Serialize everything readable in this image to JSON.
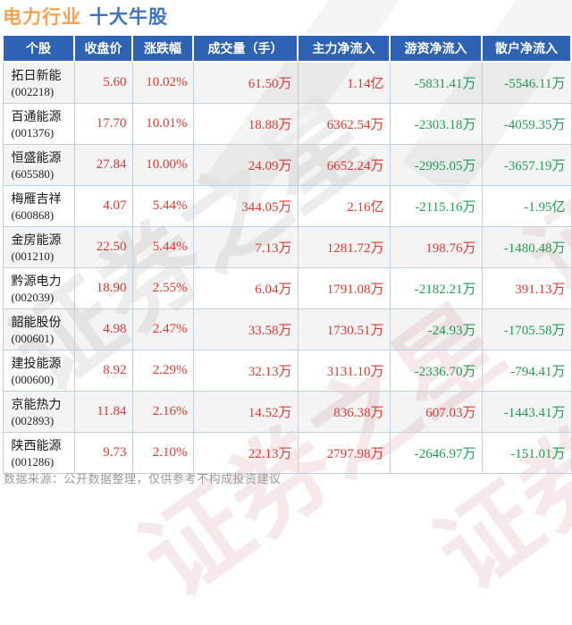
{
  "title": {
    "industry": "电力行业",
    "suffix": "十大牛股"
  },
  "chart_data": {
    "type": "table",
    "title": "电力行业 十大牛股",
    "columns": [
      "个股",
      "收盘价",
      "涨跌幅",
      "成交量（手）",
      "主力净流入",
      "游资净流入",
      "散户净流入"
    ],
    "rows": [
      {
        "name": "拓日新能",
        "code": "(002218)",
        "close": "5.60",
        "change": "10.02%",
        "volume": "61.50万",
        "main": "1.14亿",
        "hot": "-5831.41万",
        "retail": "-5546.11万"
      },
      {
        "name": "百通能源",
        "code": "(001376)",
        "close": "17.70",
        "change": "10.01%",
        "volume": "18.88万",
        "main": "6362.54万",
        "hot": "-2303.18万",
        "retail": "-4059.35万"
      },
      {
        "name": "恒盛能源",
        "code": "(605580)",
        "close": "27.84",
        "change": "10.00%",
        "volume": "24.09万",
        "main": "6652.24万",
        "hot": "-2995.05万",
        "retail": "-3657.19万"
      },
      {
        "name": "梅雁吉祥",
        "code": "(600868)",
        "close": "4.07",
        "change": "5.44%",
        "volume": "344.05万",
        "main": "2.16亿",
        "hot": "-2115.16万",
        "retail": "-1.95亿"
      },
      {
        "name": "金房能源",
        "code": "(001210)",
        "close": "22.50",
        "change": "5.44%",
        "volume": "7.13万",
        "main": "1281.72万",
        "hot": "198.76万",
        "retail": "-1480.48万"
      },
      {
        "name": "黔源电力",
        "code": "(002039)",
        "close": "18.90",
        "change": "2.55%",
        "volume": "6.04万",
        "main": "1791.08万",
        "hot": "-2182.21万",
        "retail": "391.13万"
      },
      {
        "name": "韶能股份",
        "code": "(000601)",
        "close": "4.98",
        "change": "2.47%",
        "volume": "33.58万",
        "main": "1730.51万",
        "hot": "-24.93万",
        "retail": "-1705.58万"
      },
      {
        "name": "建投能源",
        "code": "(000600)",
        "close": "8.92",
        "change": "2.29%",
        "volume": "32.13万",
        "main": "3131.10万",
        "hot": "-2336.70万",
        "retail": "-794.41万"
      },
      {
        "name": "京能热力",
        "code": "(002893)",
        "close": "11.84",
        "change": "2.16%",
        "volume": "14.52万",
        "main": "836.38万",
        "hot": "607.03万",
        "retail": "-1443.41万"
      },
      {
        "name": "陕西能源",
        "code": "(001286)",
        "close": "9.73",
        "change": "2.10%",
        "volume": "22.13万",
        "main": "2797.98万",
        "hot": "-2646.97万",
        "retail": "-151.01万"
      }
    ]
  },
  "footer": {
    "note": "数据来源：公开数据整理，仅供参考不构成投资建议"
  },
  "watermark": {
    "text": "证券之星"
  },
  "colors": {
    "up_red": "#e0392e",
    "down_green": "#1f9e52",
    "header_bg": "#2d63b2",
    "table_border": "#b9d0e6",
    "title_industry": "#f9a14e",
    "title_suffix": "#3e73c4",
    "row_alt_bg": "#f2f2f2",
    "footer_gray": "#9a9a9a"
  }
}
